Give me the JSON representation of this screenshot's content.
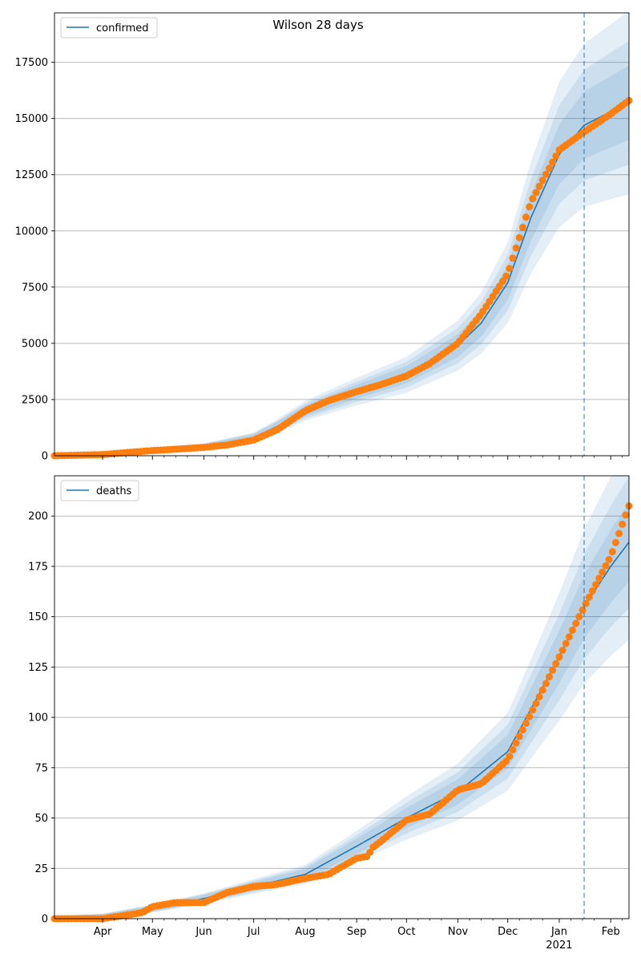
{
  "title": "Wilson 28 days",
  "colors": {
    "model": "#1f77b4",
    "observed": "#ff7f0e",
    "band": "#1f77b4",
    "grid": "#b0b0b0"
  },
  "x_axis": {
    "month_labels": [
      "Apr",
      "May",
      "Jun",
      "Jul",
      "Aug",
      "Sep",
      "Oct",
      "Nov",
      "Dec",
      "Jan",
      "Feb"
    ],
    "year_label": "2021",
    "forecast_start": "2021-01-16",
    "range": [
      "2020-03-03",
      "2021-02-12"
    ]
  },
  "chart_data": [
    {
      "type": "line",
      "legend": "confirmed",
      "legend_position": "top-left",
      "ylim": [
        0,
        19700
      ],
      "yticks": [
        0,
        2500,
        5000,
        7500,
        10000,
        12500,
        15000,
        17500
      ],
      "grid": true,
      "series": [
        {
          "name": "confirmed",
          "kind": "model",
          "x": [
            "2020-03-03",
            "2020-04-01",
            "2020-05-01",
            "2020-06-01",
            "2020-07-01",
            "2020-07-15",
            "2020-08-01",
            "2020-09-01",
            "2020-10-01",
            "2020-11-01",
            "2020-11-15",
            "2020-12-01",
            "2020-12-15",
            "2021-01-01",
            "2021-01-16",
            "2021-02-01",
            "2021-02-12"
          ],
          "values": [
            0,
            60,
            220,
            380,
            800,
            1300,
            2000,
            2850,
            3600,
            4900,
            5900,
            7700,
            10600,
            13400,
            14700,
            15300,
            15700
          ]
        },
        {
          "name": "",
          "kind": "observed",
          "x": [
            "2020-03-03",
            "2020-04-01",
            "2020-04-15",
            "2020-05-01",
            "2020-05-15",
            "2020-06-01",
            "2020-06-15",
            "2020-07-01",
            "2020-07-15",
            "2020-08-01",
            "2020-08-15",
            "2020-09-01",
            "2020-09-15",
            "2020-10-01",
            "2020-10-15",
            "2020-11-01",
            "2020-11-15",
            "2020-12-01",
            "2020-12-15",
            "2021-01-01",
            "2021-01-16",
            "2021-02-01",
            "2021-02-12"
          ],
          "values": [
            0,
            50,
            140,
            230,
            290,
            370,
            480,
            700,
            1150,
            2000,
            2450,
            2850,
            3150,
            3550,
            4100,
            5000,
            6300,
            8100,
            11300,
            13600,
            14400,
            15200,
            15800
          ]
        }
      ]
    },
    {
      "type": "line",
      "legend": "deaths",
      "legend_position": "top-left",
      "ylim": [
        0,
        220
      ],
      "yticks": [
        0,
        25,
        50,
        75,
        100,
        125,
        150,
        175,
        200
      ],
      "grid": true,
      "series": [
        {
          "name": "deaths",
          "kind": "model",
          "x": [
            "2020-03-03",
            "2020-04-01",
            "2020-05-01",
            "2020-06-01",
            "2020-07-01",
            "2020-08-01",
            "2020-09-01",
            "2020-10-01",
            "2020-11-01",
            "2020-12-01",
            "2021-01-01",
            "2021-01-16",
            "2021-02-01",
            "2021-02-12"
          ],
          "values": [
            0,
            1,
            5,
            10,
            16,
            22,
            36,
            50,
            63,
            83,
            130,
            155,
            175,
            187
          ]
        },
        {
          "name": "",
          "kind": "observed",
          "x": [
            "2020-03-03",
            "2020-04-01",
            "2020-04-25",
            "2020-05-01",
            "2020-05-15",
            "2020-06-01",
            "2020-06-15",
            "2020-07-01",
            "2020-07-15",
            "2020-08-01",
            "2020-08-15",
            "2020-09-01",
            "2020-09-08",
            "2020-09-10",
            "2020-09-15",
            "2020-10-01",
            "2020-10-15",
            "2020-11-01",
            "2020-11-15",
            "2020-12-01",
            "2020-12-15",
            "2021-01-01",
            "2021-01-16",
            "2021-02-01",
            "2021-02-12"
          ],
          "values": [
            0,
            0,
            3,
            6,
            8,
            8,
            13,
            16,
            17,
            20,
            22,
            30,
            31,
            35,
            38,
            49,
            52,
            64,
            67,
            79,
            102,
            130,
            155,
            180,
            205
          ]
        }
      ]
    }
  ]
}
